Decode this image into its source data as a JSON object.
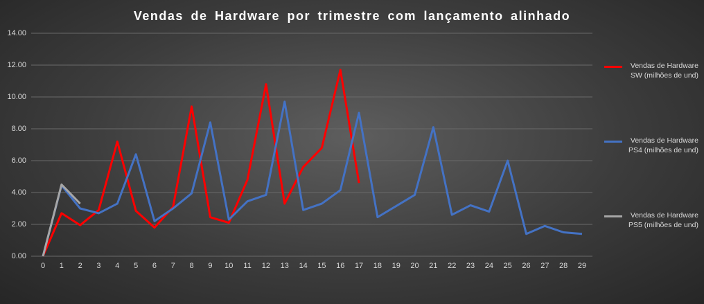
{
  "chart_data": {
    "type": "line",
    "title": "Vendas de Hardware por trimestre com lançamento alinhado",
    "categories": [
      "0",
      "1",
      "2",
      "3",
      "4",
      "5",
      "6",
      "7",
      "8",
      "9",
      "10",
      "11",
      "12",
      "13",
      "14",
      "15",
      "16",
      "17",
      "18",
      "19",
      "20",
      "21",
      "22",
      "23",
      "24",
      "25",
      "26",
      "27",
      "28",
      "29"
    ],
    "series": [
      {
        "name": "Vendas de Hardware SW (milhões de und)",
        "color": "#ff0000",
        "values": [
          0,
          2.7,
          1.95,
          2.9,
          7.2,
          2.85,
          1.8,
          3.1,
          9.4,
          2.45,
          2.1,
          4.8,
          10.8,
          3.3,
          5.6,
          6.8,
          11.7,
          4.6,
          null,
          null,
          null,
          null,
          null,
          null,
          null,
          null,
          null,
          null,
          null,
          null
        ]
      },
      {
        "name": "Vendas de Hardware PS4 (milhões de und)",
        "color": "#4472c4",
        "values": [
          0,
          4.45,
          3.0,
          2.7,
          3.3,
          6.4,
          2.2,
          3.0,
          3.95,
          8.4,
          2.3,
          3.45,
          3.85,
          9.7,
          2.9,
          3.3,
          4.15,
          9.0,
          2.45,
          3.15,
          3.85,
          8.1,
          2.6,
          3.2,
          2.8,
          6.0,
          1.4,
          1.9,
          1.5,
          1.4
        ]
      },
      {
        "name": "Vendas de Hardware PS5 (milhões de und)",
        "color": "#a6a6a6",
        "values": [
          0,
          4.5,
          3.3,
          null,
          null,
          null,
          null,
          null,
          null,
          null,
          null,
          null,
          null,
          null,
          null,
          null,
          null,
          null,
          null,
          null,
          null,
          null,
          null,
          null,
          null,
          null,
          null,
          null,
          null,
          null
        ]
      }
    ],
    "ylim": [
      0,
      14
    ],
    "yticks": [
      {
        "value": 0,
        "label": "0.00"
      },
      {
        "value": 2,
        "label": "2.00"
      },
      {
        "value": 4,
        "label": "4.00"
      },
      {
        "value": 6,
        "label": "6.00"
      },
      {
        "value": 8,
        "label": "8.00"
      },
      {
        "value": 10,
        "label": "10.00"
      },
      {
        "value": 12,
        "label": "12.00"
      },
      {
        "value": 14,
        "label": "14.00"
      }
    ],
    "grid": true
  }
}
